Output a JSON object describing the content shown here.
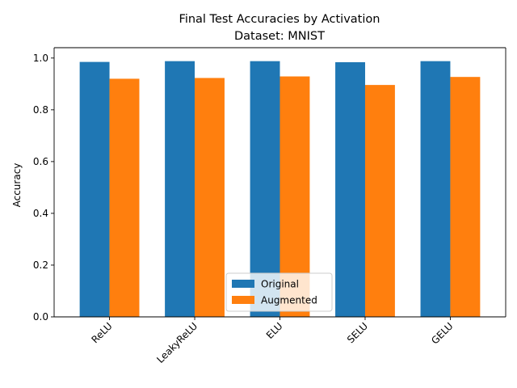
{
  "chart_data": {
    "type": "bar",
    "title": "Final Test Accuracies by Activation",
    "subtitle": "Dataset: MNIST",
    "xlabel": "",
    "ylabel": "Accuracy",
    "categories": [
      "ReLU",
      "LeakyReLU",
      "ELU",
      "SELU",
      "GELU"
    ],
    "series": [
      {
        "name": "Original",
        "color": "#1f77b4",
        "values": [
          0.985,
          0.988,
          0.988,
          0.984,
          0.988
        ]
      },
      {
        "name": "Augmented",
        "color": "#ff7f0e",
        "values": [
          0.92,
          0.923,
          0.929,
          0.896,
          0.927
        ]
      }
    ],
    "ylim": [
      0,
      1.04
    ],
    "yticks": [
      "0.0",
      "0.2",
      "0.4",
      "0.6",
      "0.8",
      "1.0"
    ],
    "grid": false,
    "legend_position": "lower center",
    "tick_label_rotation": 45
  }
}
